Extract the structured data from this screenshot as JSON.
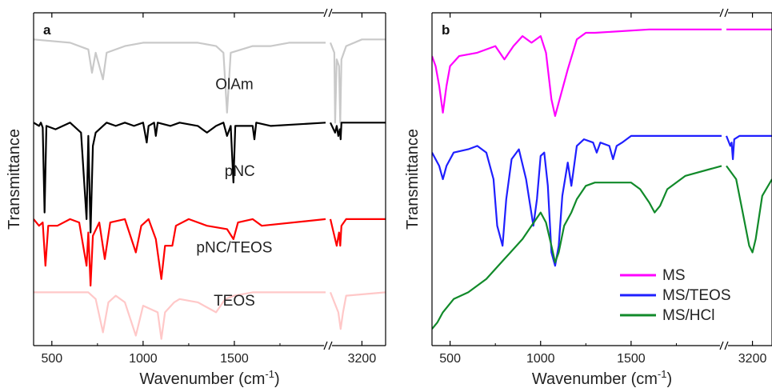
{
  "chart_data": [
    {
      "type": "line",
      "panel_label": "a",
      "xlabel": "Wavenumber (cm",
      "xlabel_sup": "-1",
      "xlabel_close": ")",
      "ylabel": "Transmittance",
      "x_break": true,
      "xlim_left": [
        400,
        2000
      ],
      "xlim_right": [
        2800,
        3500
      ],
      "xticks_left": [
        500,
        1000,
        1500
      ],
      "xticks_right": [
        3200
      ],
      "grid": false,
      "legend": "none",
      "series": [
        {
          "name": "OlAm",
          "color": "#c9c9c9",
          "label_at": [
            1500,
            0.23
          ],
          "points": [
            [
              400,
              0.08
            ],
            [
              600,
              0.09
            ],
            [
              700,
              0.11
            ],
            [
              720,
              0.18
            ],
            [
              740,
              0.12
            ],
            [
              780,
              0.2
            ],
            [
              800,
              0.12
            ],
            [
              900,
              0.1
            ],
            [
              1000,
              0.09
            ],
            [
              1100,
              0.09
            ],
            [
              1300,
              0.09
            ],
            [
              1400,
              0.1
            ],
            [
              1440,
              0.12
            ],
            [
              1460,
              0.3
            ],
            [
              1480,
              0.12
            ],
            [
              1600,
              0.1
            ],
            [
              1700,
              0.1
            ],
            [
              1800,
              0.09
            ],
            [
              2000,
              0.09
            ],
            [
              2800,
              0.09
            ],
            [
              2850,
              0.12
            ],
            [
              2860,
              0.33
            ],
            [
              2880,
              0.14
            ],
            [
              2910,
              0.16
            ],
            [
              2925,
              0.33
            ],
            [
              2940,
              0.14
            ],
            [
              3000,
              0.1
            ],
            [
              3200,
              0.08
            ],
            [
              3500,
              0.08
            ]
          ]
        },
        {
          "name": "pNC",
          "color": "#000000",
          "label_at": [
            1530,
            0.49
          ],
          "points": [
            [
              400,
              0.33
            ],
            [
              430,
              0.34
            ],
            [
              440,
              0.33
            ],
            [
              450,
              0.345
            ],
            [
              460,
              0.6
            ],
            [
              470,
              0.34
            ],
            [
              520,
              0.35
            ],
            [
              600,
              0.33
            ],
            [
              660,
              0.36
            ],
            [
              690,
              0.62
            ],
            [
              700,
              0.37
            ],
            [
              705,
              0.5
            ],
            [
              712,
              0.66
            ],
            [
              725,
              0.4
            ],
            [
              740,
              0.36
            ],
            [
              800,
              0.33
            ],
            [
              850,
              0.34
            ],
            [
              900,
              0.33
            ],
            [
              950,
              0.34
            ],
            [
              1000,
              0.33
            ],
            [
              1020,
              0.39
            ],
            [
              1030,
              0.34
            ],
            [
              1060,
              0.33
            ],
            [
              1070,
              0.37
            ],
            [
              1080,
              0.33
            ],
            [
              1150,
              0.34
            ],
            [
              1200,
              0.33
            ],
            [
              1300,
              0.34
            ],
            [
              1350,
              0.36
            ],
            [
              1400,
              0.34
            ],
            [
              1440,
              0.33
            ],
            [
              1460,
              0.37
            ],
            [
              1480,
              0.34
            ],
            [
              1495,
              0.51
            ],
            [
              1505,
              0.34
            ],
            [
              1600,
              0.34
            ],
            [
              1610,
              0.38
            ],
            [
              1620,
              0.33
            ],
            [
              1700,
              0.34
            ],
            [
              2000,
              0.33
            ],
            [
              2800,
              0.33
            ],
            [
              2860,
              0.36
            ],
            [
              2880,
              0.34
            ],
            [
              2900,
              0.37
            ],
            [
              2920,
              0.35
            ],
            [
              2930,
              0.38
            ],
            [
              2940,
              0.33
            ],
            [
              3000,
              0.33
            ],
            [
              3500,
              0.33
            ]
          ]
        },
        {
          "name": "pNC/TEOS",
          "color": "#ff0000",
          "label_at": [
            1500,
            0.72
          ],
          "points": [
            [
              400,
              0.62
            ],
            [
              430,
              0.64
            ],
            [
              450,
              0.63
            ],
            [
              465,
              0.76
            ],
            [
              480,
              0.64
            ],
            [
              530,
              0.64
            ],
            [
              600,
              0.62
            ],
            [
              650,
              0.63
            ],
            [
              690,
              0.76
            ],
            [
              700,
              0.66
            ],
            [
              712,
              0.82
            ],
            [
              725,
              0.67
            ],
            [
              760,
              0.63
            ],
            [
              790,
              0.74
            ],
            [
              820,
              0.63
            ],
            [
              900,
              0.62
            ],
            [
              960,
              0.72
            ],
            [
              990,
              0.64
            ],
            [
              1030,
              0.62
            ],
            [
              1070,
              0.68
            ],
            [
              1100,
              0.8
            ],
            [
              1120,
              0.7
            ],
            [
              1160,
              0.7
            ],
            [
              1180,
              0.64
            ],
            [
              1250,
              0.62
            ],
            [
              1350,
              0.64
            ],
            [
              1460,
              0.65
            ],
            [
              1495,
              0.68
            ],
            [
              1520,
              0.63
            ],
            [
              1600,
              0.62
            ],
            [
              1650,
              0.64
            ],
            [
              2000,
              0.62
            ],
            [
              2800,
              0.62
            ],
            [
              2880,
              0.7
            ],
            [
              2910,
              0.66
            ],
            [
              2925,
              0.7
            ],
            [
              2940,
              0.64
            ],
            [
              3000,
              0.62
            ],
            [
              3500,
              0.62
            ]
          ]
        },
        {
          "name": "TEOS",
          "color": "#ffc8c8",
          "label_at": [
            1500,
            0.88
          ],
          "points": [
            [
              400,
              0.84
            ],
            [
              600,
              0.84
            ],
            [
              700,
              0.84
            ],
            [
              740,
              0.86
            ],
            [
              780,
              0.96
            ],
            [
              810,
              0.87
            ],
            [
              850,
              0.85
            ],
            [
              900,
              0.87
            ],
            [
              960,
              0.97
            ],
            [
              1000,
              0.88
            ],
            [
              1080,
              0.9
            ],
            [
              1100,
              0.98
            ],
            [
              1120,
              0.9
            ],
            [
              1170,
              0.87
            ],
            [
              1200,
              0.86
            ],
            [
              1300,
              0.87
            ],
            [
              1400,
              0.9
            ],
            [
              1450,
              0.86
            ],
            [
              1500,
              0.85
            ],
            [
              1600,
              0.84
            ],
            [
              2000,
              0.84
            ],
            [
              2800,
              0.84
            ],
            [
              2900,
              0.9
            ],
            [
              2930,
              0.95
            ],
            [
              2960,
              0.9
            ],
            [
              3000,
              0.85
            ],
            [
              3500,
              0.84
            ]
          ]
        }
      ]
    },
    {
      "type": "line",
      "panel_label": "b",
      "xlabel": "Wavenumber (cm",
      "xlabel_sup": "-1",
      "xlabel_close": ")",
      "ylabel": "Transmittance",
      "x_break": true,
      "xlim_left": [
        400,
        2000
      ],
      "xlim_right": [
        2800,
        3500
      ],
      "xticks_left": [
        500,
        1000,
        1500
      ],
      "xticks_right": [
        3200
      ],
      "grid": false,
      "legend": "bottom-right",
      "series": [
        {
          "name": "MS",
          "color": "#ff00ff",
          "points": [
            [
              400,
              0.13
            ],
            [
              420,
              0.16
            ],
            [
              440,
              0.22
            ],
            [
              460,
              0.3
            ],
            [
              480,
              0.22
            ],
            [
              500,
              0.16
            ],
            [
              550,
              0.13
            ],
            [
              650,
              0.12
            ],
            [
              750,
              0.1
            ],
            [
              800,
              0.14
            ],
            [
              850,
              0.1
            ],
            [
              900,
              0.07
            ],
            [
              950,
              0.09
            ],
            [
              1000,
              0.07
            ],
            [
              1030,
              0.12
            ],
            [
              1060,
              0.26
            ],
            [
              1080,
              0.31
            ],
            [
              1100,
              0.27
            ],
            [
              1150,
              0.17
            ],
            [
              1200,
              0.08
            ],
            [
              1250,
              0.06
            ],
            [
              1300,
              0.06
            ],
            [
              1600,
              0.05
            ],
            [
              2000,
              0.05
            ],
            [
              2800,
              0.05
            ],
            [
              3500,
              0.05
            ]
          ]
        },
        {
          "name": "MS/TEOS",
          "color": "#1f1fff",
          "points": [
            [
              400,
              0.42
            ],
            [
              440,
              0.46
            ],
            [
              460,
              0.5
            ],
            [
              480,
              0.46
            ],
            [
              520,
              0.42
            ],
            [
              600,
              0.41
            ],
            [
              650,
              0.4
            ],
            [
              700,
              0.42
            ],
            [
              740,
              0.5
            ],
            [
              760,
              0.64
            ],
            [
              790,
              0.7
            ],
            [
              810,
              0.56
            ],
            [
              840,
              0.44
            ],
            [
              880,
              0.41
            ],
            [
              920,
              0.5
            ],
            [
              960,
              0.64
            ],
            [
              980,
              0.56
            ],
            [
              1000,
              0.43
            ],
            [
              1020,
              0.42
            ],
            [
              1040,
              0.52
            ],
            [
              1060,
              0.72
            ],
            [
              1080,
              0.76
            ],
            [
              1100,
              0.7
            ],
            [
              1120,
              0.55
            ],
            [
              1150,
              0.45
            ],
            [
              1170,
              0.52
            ],
            [
              1180,
              0.48
            ],
            [
              1200,
              0.4
            ],
            [
              1240,
              0.38
            ],
            [
              1290,
              0.39
            ],
            [
              1310,
              0.42
            ],
            [
              1330,
              0.39
            ],
            [
              1380,
              0.4
            ],
            [
              1400,
              0.44
            ],
            [
              1420,
              0.4
            ],
            [
              1450,
              0.39
            ],
            [
              1500,
              0.37
            ],
            [
              1600,
              0.37
            ],
            [
              2000,
              0.37
            ],
            [
              2800,
              0.37
            ],
            [
              2860,
              0.4
            ],
            [
              2880,
              0.39
            ],
            [
              2900,
              0.44
            ],
            [
              2920,
              0.38
            ],
            [
              3000,
              0.37
            ],
            [
              3500,
              0.37
            ]
          ]
        },
        {
          "name": "MS/HCl",
          "color": "#118a2a",
          "points": [
            [
              400,
              0.95
            ],
            [
              430,
              0.93
            ],
            [
              460,
              0.9
            ],
            [
              520,
              0.86
            ],
            [
              600,
              0.84
            ],
            [
              700,
              0.8
            ],
            [
              800,
              0.74
            ],
            [
              900,
              0.68
            ],
            [
              950,
              0.64
            ],
            [
              1000,
              0.6
            ],
            [
              1030,
              0.63
            ],
            [
              1060,
              0.7
            ],
            [
              1080,
              0.75
            ],
            [
              1100,
              0.72
            ],
            [
              1130,
              0.64
            ],
            [
              1170,
              0.6
            ],
            [
              1200,
              0.56
            ],
            [
              1250,
              0.52
            ],
            [
              1300,
              0.51
            ],
            [
              1400,
              0.51
            ],
            [
              1500,
              0.51
            ],
            [
              1550,
              0.53
            ],
            [
              1600,
              0.57
            ],
            [
              1630,
              0.6
            ],
            [
              1660,
              0.58
            ],
            [
              1700,
              0.53
            ],
            [
              1800,
              0.49
            ],
            [
              2000,
              0.46
            ],
            [
              2800,
              0.46
            ],
            [
              2950,
              0.5
            ],
            [
              3050,
              0.6
            ],
            [
              3150,
              0.7
            ],
            [
              3200,
              0.72
            ],
            [
              3250,
              0.68
            ],
            [
              3350,
              0.55
            ],
            [
              3500,
              0.5
            ]
          ]
        }
      ]
    }
  ]
}
